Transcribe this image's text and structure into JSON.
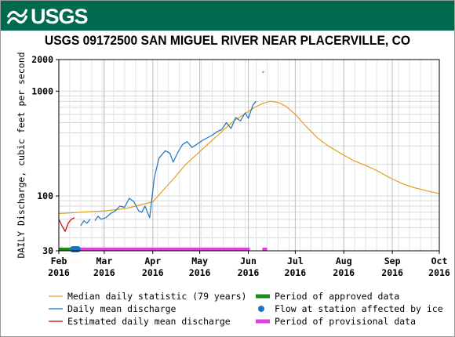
{
  "header": {
    "logo_text": "USGS",
    "logo_icon": "usgs-wave-icon",
    "brand_color": "#006a4e"
  },
  "chart_data": {
    "type": "line",
    "title": "USGS 09172500 SAN MIGUEL RIVER NEAR PLACERVILLE, CO",
    "ylabel": "DAILY Discharge, cubic feet per second",
    "xlabel": "",
    "y_scale": "log",
    "ylim": [
      30,
      2000
    ],
    "y_ticks": [
      {
        "value": 30,
        "label": "30"
      },
      {
        "value": 100,
        "label": "100"
      },
      {
        "value": 1000,
        "label": "1000"
      },
      {
        "value": 2000,
        "label": "2000"
      }
    ],
    "x_range": [
      "2016-02-01",
      "2016-10-01"
    ],
    "x_ticks": [
      {
        "date": "2016-02-01",
        "label": [
          "Feb",
          "2016"
        ]
      },
      {
        "date": "2016-03-01",
        "label": [
          "Mar",
          "2016"
        ]
      },
      {
        "date": "2016-04-01",
        "label": [
          "Apr",
          "2016"
        ]
      },
      {
        "date": "2016-05-01",
        "label": [
          "May",
          "2016"
        ]
      },
      {
        "date": "2016-06-01",
        "label": [
          "Jun",
          "2016"
        ]
      },
      {
        "date": "2016-07-01",
        "label": [
          "Jul",
          "2016"
        ]
      },
      {
        "date": "2016-08-01",
        "label": [
          "Aug",
          "2016"
        ]
      },
      {
        "date": "2016-09-01",
        "label": [
          "Sep",
          "2016"
        ]
      },
      {
        "date": "2016-10-01",
        "label": [
          "Oct",
          "2016"
        ]
      }
    ],
    "grid": true,
    "series": [
      {
        "name": "Median daily statistic (79 years)",
        "color": "#e0a020",
        "points": [
          [
            "2016-02-01",
            68
          ],
          [
            "2016-02-15",
            70
          ],
          [
            "2016-03-01",
            72
          ],
          [
            "2016-03-15",
            76
          ],
          [
            "2016-04-01",
            88
          ],
          [
            "2016-04-08",
            115
          ],
          [
            "2016-04-15",
            150
          ],
          [
            "2016-04-22",
            200
          ],
          [
            "2016-05-01",
            265
          ],
          [
            "2016-05-08",
            330
          ],
          [
            "2016-05-15",
            410
          ],
          [
            "2016-05-22",
            510
          ],
          [
            "2016-06-01",
            640
          ],
          [
            "2016-06-05",
            700
          ],
          [
            "2016-06-10",
            760
          ],
          [
            "2016-06-15",
            800
          ],
          [
            "2016-06-20",
            780
          ],
          [
            "2016-06-25",
            720
          ],
          [
            "2016-07-01",
            600
          ],
          [
            "2016-07-08",
            460
          ],
          [
            "2016-07-15",
            360
          ],
          [
            "2016-07-22",
            300
          ],
          [
            "2016-08-01",
            245
          ],
          [
            "2016-08-08",
            215
          ],
          [
            "2016-08-15",
            195
          ],
          [
            "2016-08-22",
            175
          ],
          [
            "2016-09-01",
            145
          ],
          [
            "2016-09-08",
            130
          ],
          [
            "2016-09-15",
            120
          ],
          [
            "2016-09-22",
            113
          ],
          [
            "2016-10-01",
            105
          ]
        ]
      },
      {
        "name": "Daily mean discharge",
        "color": "#1e73be",
        "segments": [
          [
            [
              "2016-02-15",
              52
            ],
            [
              "2016-02-17",
              58
            ],
            [
              "2016-02-19",
              55
            ],
            [
              "2016-02-21",
              60
            ]
          ],
          [
            [
              "2016-02-24",
              58
            ],
            [
              "2016-02-26",
              64
            ],
            [
              "2016-02-28",
              60
            ],
            [
              "2016-03-02",
              62
            ],
            [
              "2016-03-05",
              68
            ],
            [
              "2016-03-08",
              72
            ],
            [
              "2016-03-11",
              80
            ],
            [
              "2016-03-14",
              78
            ],
            [
              "2016-03-17",
              95
            ],
            [
              "2016-03-20",
              88
            ],
            [
              "2016-03-23",
              72
            ],
            [
              "2016-03-25",
              70
            ],
            [
              "2016-03-27",
              80
            ],
            [
              "2016-03-30",
              62
            ],
            [
              "2016-04-02",
              150
            ],
            [
              "2016-04-05",
              230
            ],
            [
              "2016-04-09",
              270
            ],
            [
              "2016-04-12",
              255
            ],
            [
              "2016-04-14",
              210
            ],
            [
              "2016-04-17",
              260
            ],
            [
              "2016-04-20",
              310
            ],
            [
              "2016-04-23",
              330
            ],
            [
              "2016-04-26",
              290
            ],
            [
              "2016-04-29",
              310
            ],
            [
              "2016-05-03",
              340
            ],
            [
              "2016-05-06",
              360
            ],
            [
              "2016-05-09",
              380
            ],
            [
              "2016-05-12",
              410
            ],
            [
              "2016-05-15",
              430
            ],
            [
              "2016-05-18",
              500
            ],
            [
              "2016-05-21",
              440
            ],
            [
              "2016-05-24",
              560
            ],
            [
              "2016-05-27",
              520
            ],
            [
              "2016-05-30",
              620
            ],
            [
              "2016-06-01",
              550
            ],
            [
              "2016-06-04",
              740
            ],
            [
              "2016-06-06",
              800
            ]
          ],
          [
            [
              "2016-06-10",
              1500
            ],
            [
              "2016-06-11",
              1540
            ]
          ]
        ]
      },
      {
        "name": "Estimated daily mean discharge",
        "color": "#cc0000",
        "segments": [
          [
            [
              "2016-02-01",
              60
            ],
            [
              "2016-02-03",
              52
            ],
            [
              "2016-02-05",
              46
            ],
            [
              "2016-02-07",
              55
            ],
            [
              "2016-02-09",
              60
            ],
            [
              "2016-02-11",
              62
            ]
          ]
        ]
      }
    ],
    "bars": [
      {
        "name": "Period of approved data",
        "color": "#1a8c1a",
        "from": "2016-02-01",
        "to": "2016-02-12"
      },
      {
        "name": "Period of provisional data",
        "color": "#e040e0",
        "from": "2016-02-12",
        "to": "2016-06-02"
      },
      {
        "name": "Period of provisional data",
        "color": "#e040e0",
        "from": "2016-06-10",
        "to": "2016-06-13"
      }
    ],
    "ice_flags": {
      "name": "Flow at station affected by ice",
      "color": "#1e73be",
      "dates": [
        "2016-02-10",
        "2016-02-11",
        "2016-02-12",
        "2016-02-13"
      ]
    },
    "legend": {
      "position": "bottom",
      "items": [
        {
          "label": "Median daily statistic (79 years)",
          "kind": "line",
          "color": "#e0a020"
        },
        {
          "label": "Period of approved data",
          "kind": "bar",
          "color": "#1a8c1a"
        },
        {
          "label": "Daily mean discharge",
          "kind": "line",
          "color": "#1e73be"
        },
        {
          "label": "Flow at station affected by ice",
          "kind": "dot",
          "color": "#1e73be"
        },
        {
          "label": "Estimated daily mean discharge",
          "kind": "line",
          "color": "#cc0000"
        },
        {
          "label": "Period of provisional data",
          "kind": "bar",
          "color": "#e040e0"
        }
      ]
    }
  }
}
